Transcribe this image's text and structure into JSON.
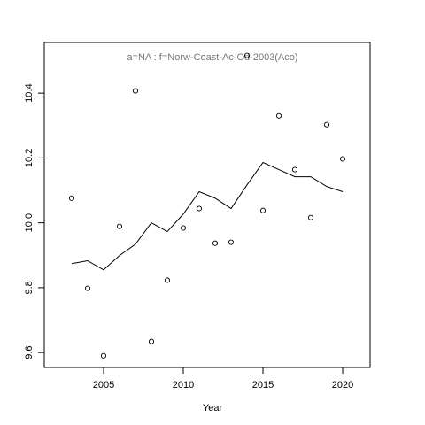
{
  "chart_data": {
    "type": "line",
    "title": "a=NA  :  f=Norw-Coast-Ac-Od-2003(Aco)",
    "xlabel": "Year",
    "x": [
      2003,
      2004,
      2005,
      2006,
      2007,
      2008,
      2009,
      2010,
      2011,
      2012,
      2013,
      2014,
      2015,
      2016,
      2017,
      2018,
      2019,
      2020
    ],
    "series": [
      {
        "style": "points",
        "color": "#000000",
        "values": [
          10.076,
          9.798,
          9.59,
          9.989,
          10.407,
          9.634,
          9.823,
          9.984,
          10.044,
          9.937,
          9.94,
          10.516,
          10.038,
          10.33,
          10.164,
          10.016,
          10.303,
          10.197
        ]
      },
      {
        "style": "line",
        "color": "#000000",
        "values": [
          9.874,
          9.883,
          9.855,
          9.899,
          9.934,
          10.0,
          9.973,
          10.027,
          10.096,
          10.076,
          10.044,
          10.117,
          10.186,
          10.164,
          10.142,
          10.142,
          10.112,
          10.096
        ]
      }
    ],
    "xlim": [
      2001.28,
      2021.72
    ],
    "ylim": [
      9.554,
      10.556
    ],
    "xticks": [
      2005,
      2010,
      2015,
      2020
    ],
    "yticks": [
      9.6,
      9.8,
      {
        "value": 10,
        "label": "10.0"
      },
      10.2,
      10.4
    ]
  }
}
